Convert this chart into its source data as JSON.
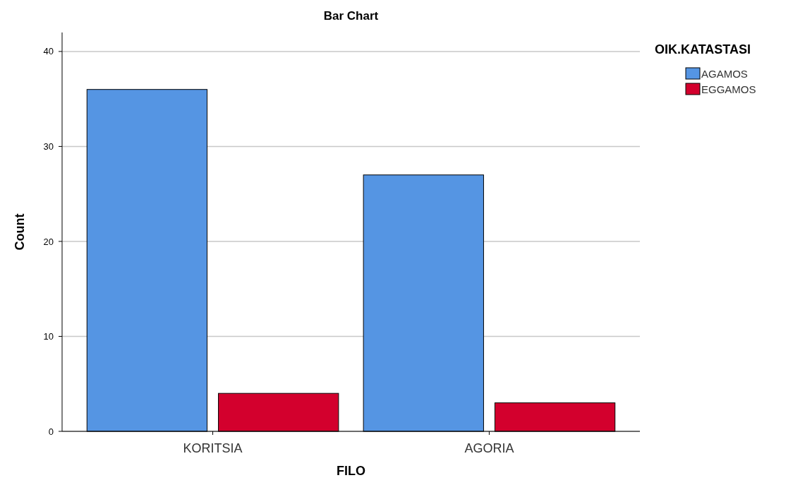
{
  "chart_data": {
    "type": "bar",
    "title": "Bar Chart",
    "xlabel": "FILO",
    "ylabel": "Count",
    "legend_title": "OIK.KATASTASI",
    "categories": [
      "KORITSIA",
      "AGORIA"
    ],
    "series": [
      {
        "name": "AGAMOS",
        "color": "#5595e3",
        "values": [
          36,
          27
        ]
      },
      {
        "name": "EGGAMOS",
        "color": "#d3002d",
        "values": [
          4,
          3
        ]
      }
    ],
    "ylim": [
      0,
      42
    ],
    "yticks": [
      0,
      10,
      20,
      30,
      40
    ],
    "grid": "y",
    "legend": "top right"
  }
}
